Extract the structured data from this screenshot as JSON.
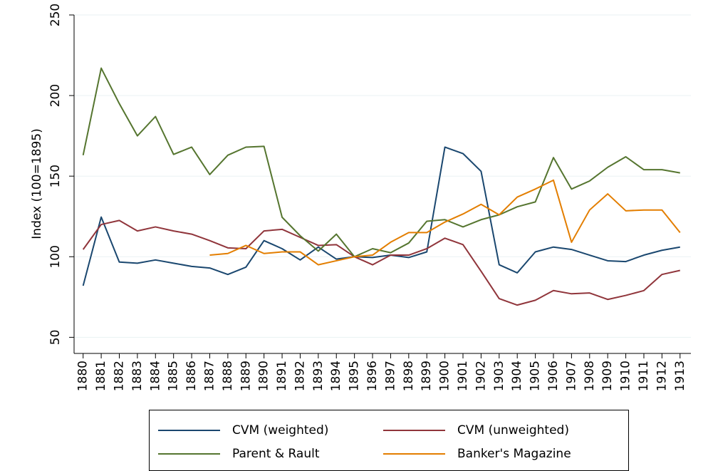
{
  "chart_data": {
    "type": "line",
    "y_label": "Index (100=1895)",
    "x": [
      1880,
      1881,
      1882,
      1883,
      1884,
      1885,
      1886,
      1887,
      1888,
      1889,
      1890,
      1891,
      1892,
      1893,
      1894,
      1895,
      1896,
      1897,
      1898,
      1899,
      1900,
      1901,
      1902,
      1903,
      1904,
      1905,
      1906,
      1907,
      1908,
      1909,
      1910,
      1911,
      1912,
      1913
    ],
    "xlim": [
      1879.5,
      1913.6
    ],
    "xticks": [
      1880,
      1881,
      1882,
      1883,
      1884,
      1885,
      1886,
      1887,
      1888,
      1889,
      1890,
      1891,
      1892,
      1893,
      1894,
      1895,
      1896,
      1897,
      1898,
      1899,
      1900,
      1901,
      1902,
      1903,
      1904,
      1905,
      1906,
      1907,
      1908,
      1909,
      1910,
      1911,
      1912,
      1913
    ],
    "ylim": [
      40,
      250
    ],
    "yticks": [
      50,
      100,
      150,
      200,
      250
    ],
    "grid": true,
    "legend": "bottom",
    "series": [
      {
        "name": "CVM (weighted)",
        "color": "#1a476f",
        "values": [
          82,
          124.6,
          96.7,
          96,
          98,
          96,
          94,
          93,
          89,
          93.5,
          110,
          105,
          98,
          106,
          98.5,
          100,
          99.5,
          101,
          99.5,
          103,
          168,
          164,
          153,
          95,
          90,
          103,
          106,
          104.5,
          101,
          97.5,
          97,
          101,
          104,
          106
        ]
      },
      {
        "name": "CVM (unweighted)",
        "color": "#90353b",
        "values": [
          104.5,
          120,
          122.5,
          116,
          118.5,
          116,
          114,
          110,
          105.5,
          105,
          116,
          117,
          112,
          107,
          107.5,
          100,
          95,
          101,
          101,
          105,
          111.5,
          107.5,
          91,
          74,
          70,
          73,
          79,
          77,
          77.5,
          73.5,
          76,
          79,
          89,
          91.5
        ]
      },
      {
        "name": "Parent & Rault",
        "color": "#55752f",
        "values": [
          163,
          217,
          195,
          175,
          187,
          163.5,
          168,
          151,
          163,
          168,
          168.5,
          124.5,
          113,
          103.5,
          114,
          100,
          105,
          102.5,
          108.5,
          122,
          123,
          118.5,
          123,
          126,
          131,
          134,
          161.5,
          142,
          147,
          155.5,
          162,
          154,
          154,
          152
        ]
      },
      {
        "name": "Banker's Magazine",
        "color": "#e37e00",
        "values": [
          null,
          null,
          null,
          null,
          null,
          null,
          null,
          101,
          102,
          107,
          102,
          103,
          103,
          95,
          97.5,
          100,
          101,
          109,
          115,
          115,
          121.5,
          126.5,
          132.5,
          126,
          137,
          142,
          147.5,
          109,
          129,
          139,
          128.5,
          129,
          129,
          115
        ]
      }
    ]
  }
}
